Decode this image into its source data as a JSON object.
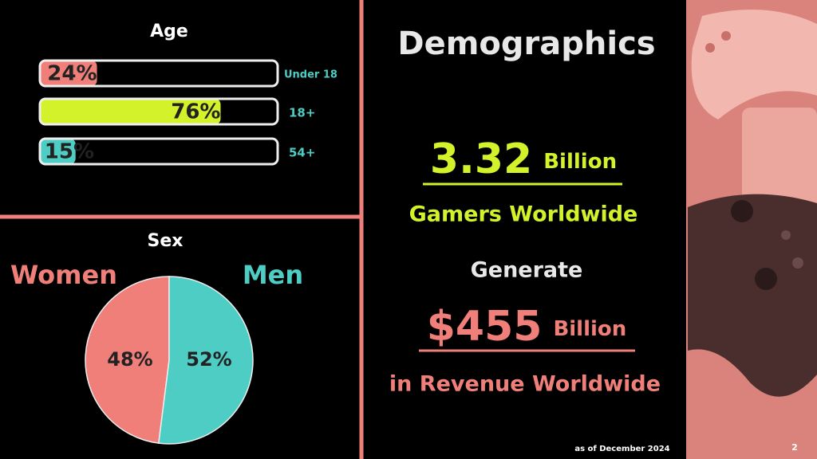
{
  "age": {
    "title": "Age",
    "categories": [
      "Under 18",
      "18+",
      "54+"
    ],
    "values": [
      24,
      76,
      15
    ],
    "value_labels": [
      "24%",
      "76%",
      "15%"
    ],
    "colors": [
      "#f07f7a",
      "#d4f22a",
      "#4ecdc4"
    ]
  },
  "sex": {
    "title": "Sex",
    "categories": [
      "Women",
      "Men"
    ],
    "values": [
      48,
      52
    ],
    "value_labels": [
      "48%",
      "52%"
    ],
    "colors": [
      "#f07f7a",
      "#4ecdc4"
    ]
  },
  "header": {
    "title": "Demographics"
  },
  "stats": {
    "gamers": {
      "number": "3.32",
      "unit": "Billion",
      "caption": "Gamers Worldwide"
    },
    "connector": "Generate",
    "revenue": {
      "number": "$455",
      "unit": "Billion",
      "caption": "in Revenue Worldwide"
    }
  },
  "footer": {
    "note": "as of December 2024",
    "page": "2"
  }
}
